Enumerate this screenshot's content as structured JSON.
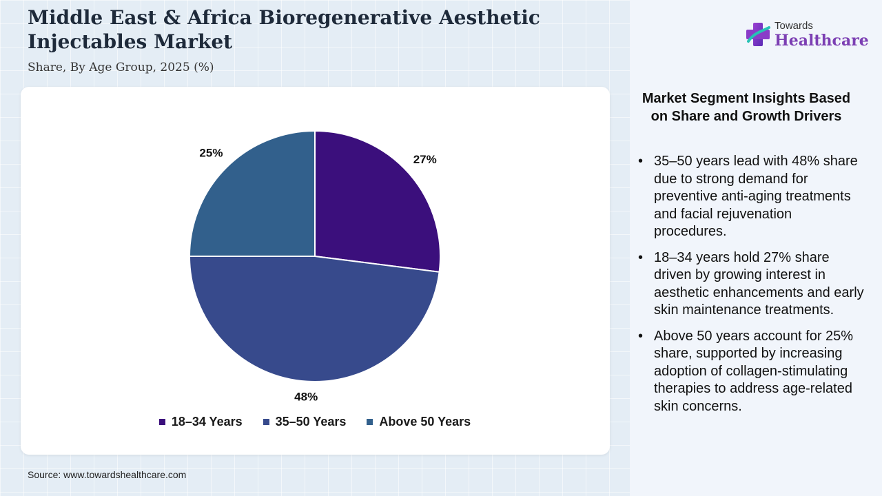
{
  "header": {
    "title": "Middle East & Africa Bioregenerative Aesthetic Injectables Market",
    "subtitle": "Share, By Age Group, 2025 (%)"
  },
  "brand": {
    "top": "Towards",
    "main": "Healthcare",
    "icon": "plus-cross-icon"
  },
  "chart_data": {
    "type": "pie",
    "categories": [
      "18–34 Years",
      "35–50 Years",
      "Above 50 Years"
    ],
    "values": [
      27,
      48,
      25
    ],
    "labels": [
      "27%",
      "48%",
      "25%"
    ],
    "colors": [
      "#3b0f7c",
      "#374a8c",
      "#32608c"
    ],
    "legend_position": "bottom",
    "start_angle": "12 o'clock, clockwise"
  },
  "insights": {
    "title": "Market Segment Insights Based on Share and Growth Drivers",
    "items": [
      "35–50 years lead with 48% share due to strong demand for preventive anti-aging treatments and facial rejuvenation procedures.",
      "18–34 years hold 27% share driven by growing interest in aesthetic enhancements and early skin maintenance treatments.",
      "Above 50 years account for 25% share, supported by increasing adoption of collagen-stimulating therapies to address age-related skin concerns."
    ]
  },
  "footer": {
    "source": "Source: www.towardshealthcare.com"
  }
}
